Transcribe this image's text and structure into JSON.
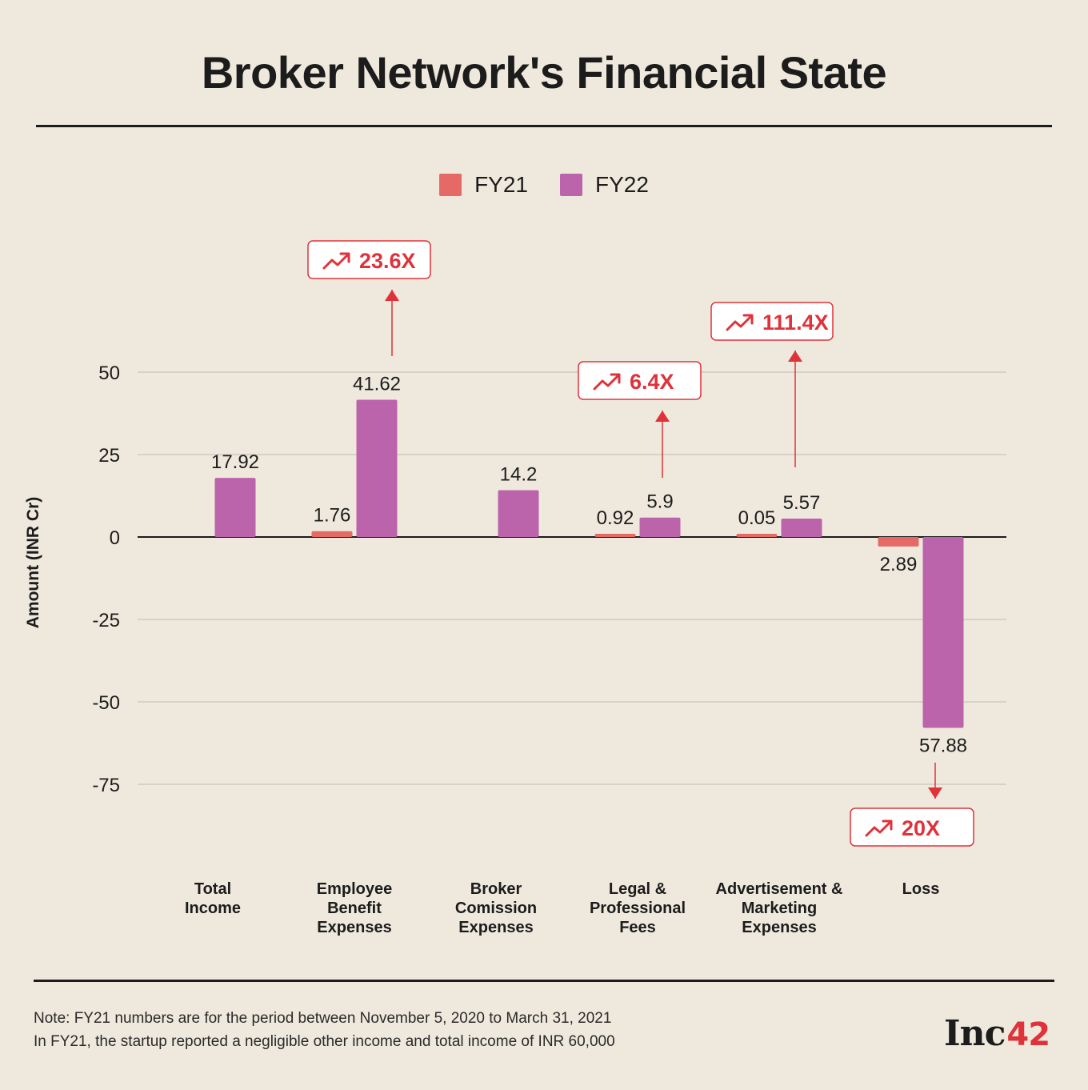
{
  "colors": {
    "fy21": "#e56a66",
    "fy22": "#bb64ac",
    "accent": "#e0323a",
    "grid": "#cfcac0"
  },
  "chart_data": {
    "type": "bar",
    "title": "Broker Network's Financial State",
    "ylabel": "Amount (INR Cr)",
    "ylim": [
      -90,
      60
    ],
    "yticks": [
      50,
      25,
      0,
      -25,
      -50,
      -75
    ],
    "categories": [
      [
        "Total",
        "Income"
      ],
      [
        "Employee",
        "Benefit",
        "Expenses"
      ],
      [
        "Broker",
        "Comission",
        "Expenses"
      ],
      [
        "Legal &",
        "Professional",
        "Fees"
      ],
      [
        "Advertisement &",
        "Marketing",
        "Expenses"
      ],
      [
        "Loss"
      ]
    ],
    "series": [
      {
        "name": "FY21",
        "values": [
          null,
          1.76,
          null,
          0.92,
          0.05,
          -2.89
        ],
        "labels": [
          "",
          "1.76",
          "",
          "0.92",
          "0.05",
          "2.89"
        ]
      },
      {
        "name": "FY22",
        "values": [
          17.92,
          41.62,
          14.2,
          5.9,
          5.57,
          -57.88
        ],
        "labels": [
          "17.92",
          "41.62",
          "14.2",
          "5.9",
          "5.57",
          "57.88"
        ]
      }
    ],
    "annotations": [
      {
        "category": 1,
        "text": "23.6X"
      },
      {
        "category": 3,
        "text": "6.4X"
      },
      {
        "category": 4,
        "text": "111.4X"
      },
      {
        "category": 5,
        "text": "20X"
      }
    ],
    "grid": true,
    "legend": "top-center"
  },
  "notes": [
    "Note: FY21 numbers are for the period between November 5, 2020 to March 31, 2021",
    "In FY21, the startup reported a negligible other income and total income of INR 60,000"
  ],
  "logo": {
    "text": "Inc",
    "number": "42"
  }
}
